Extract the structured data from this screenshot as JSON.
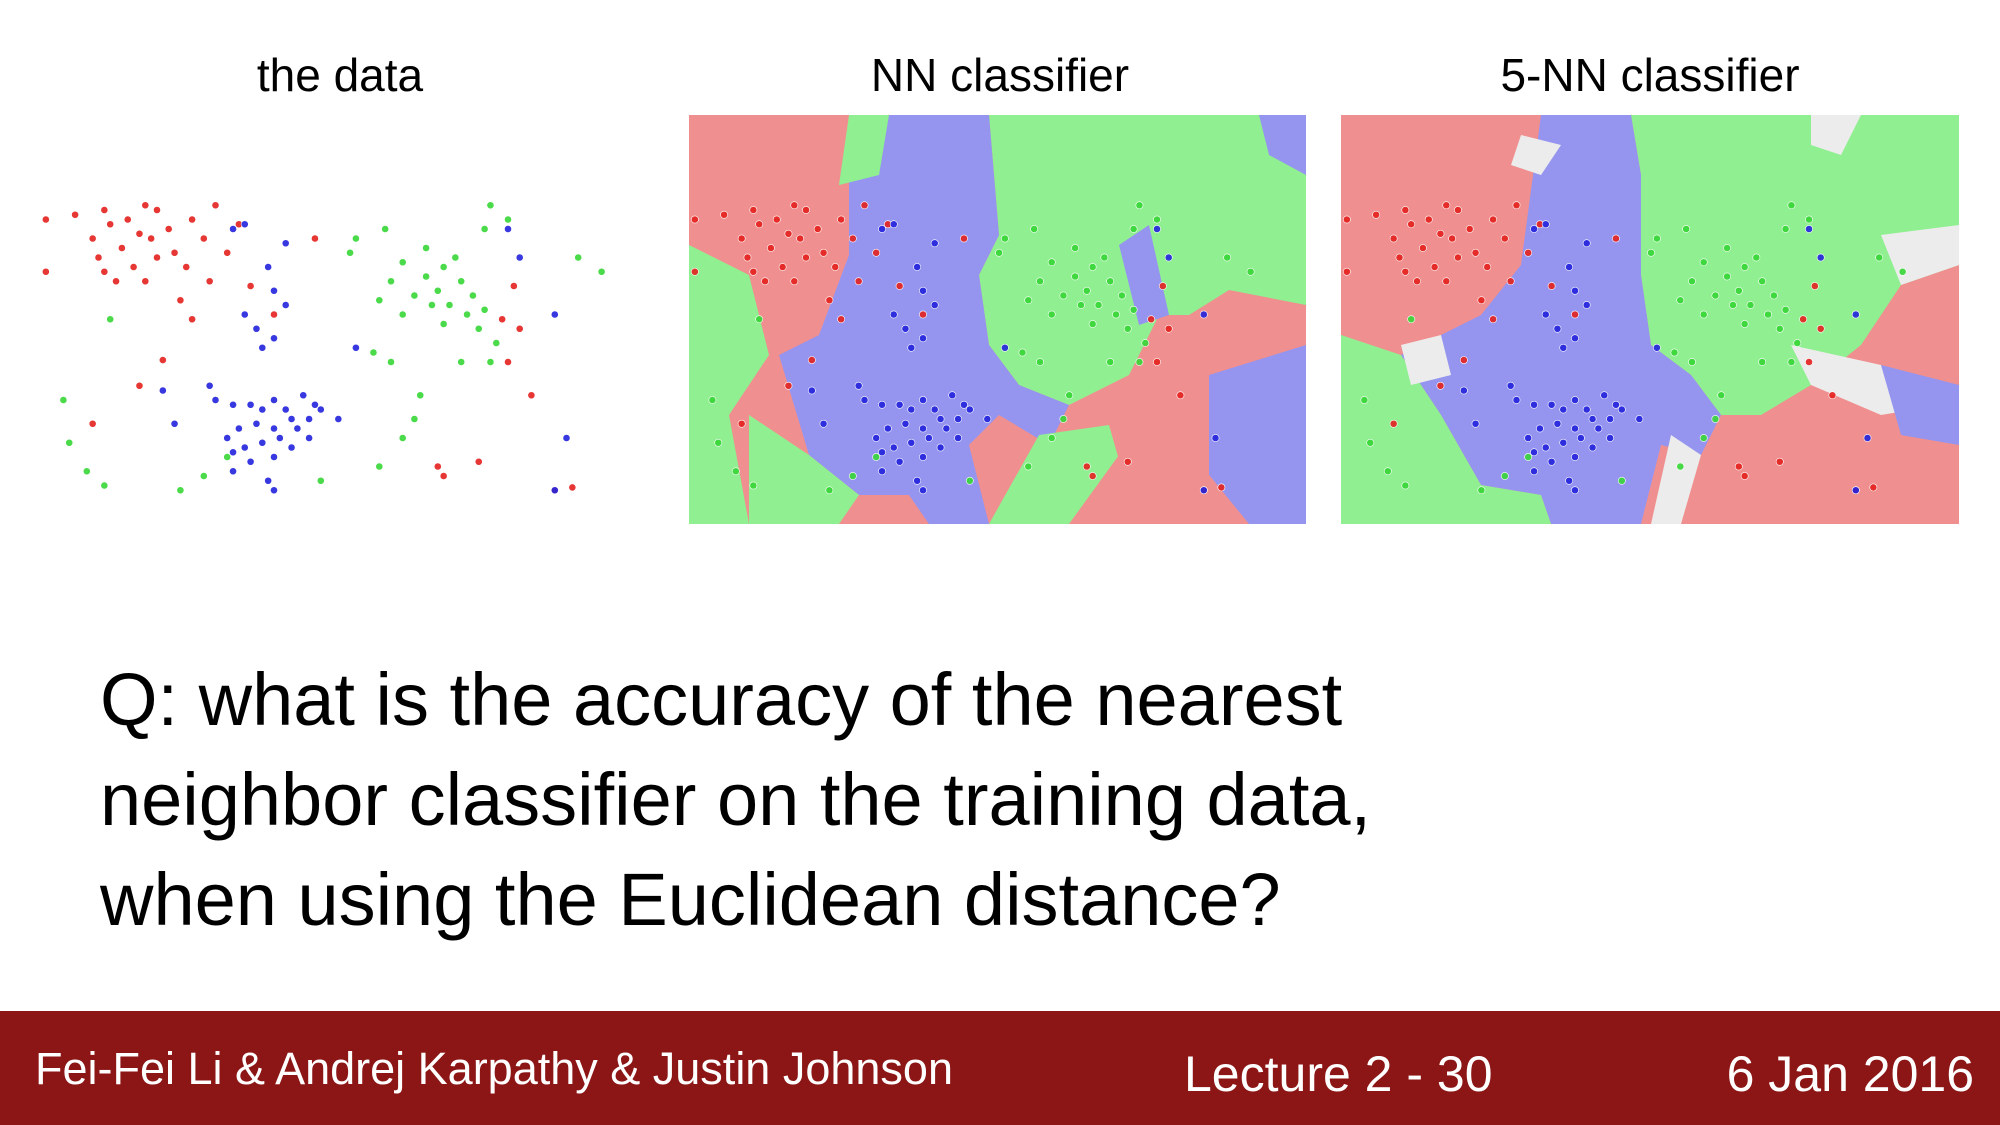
{
  "panels": [
    {
      "title": "the data"
    },
    {
      "title": "NN classifier"
    },
    {
      "title": "5-NN classifier"
    }
  ],
  "colors": {
    "red_point": "#e3211e",
    "green_point": "#36d636",
    "blue_point": "#2222dd",
    "red_region": "#f08f8f",
    "green_region": "#90ef90",
    "blue_region": "#9595f0",
    "white_region": "#ececec",
    "footer_bg": "#8c1515"
  },
  "question": {
    "lines": [
      "Q: what is the accuracy of the nearest",
      "neighbor classifier on the training data,",
      "when using the Euclidean distance?"
    ]
  },
  "footer": {
    "authors": "Fei-Fei Li & Andrej Karpathy & Justin Johnson",
    "lecture": "Lecture 2 - 30",
    "date": "6 Jan 2016"
  }
}
